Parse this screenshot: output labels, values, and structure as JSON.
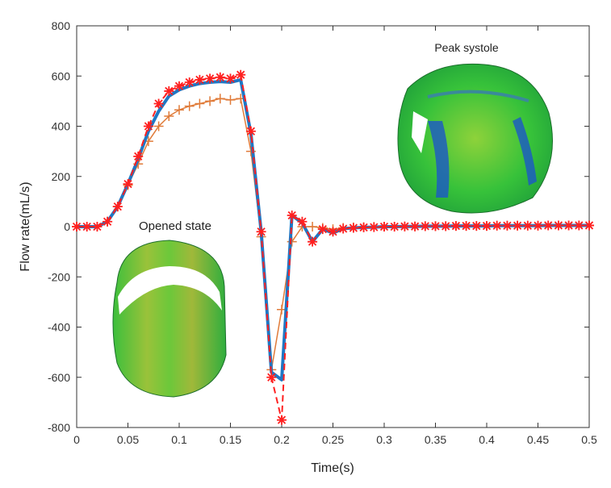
{
  "chart_data": {
    "type": "line",
    "title": "",
    "xlabel": "Time(s)",
    "ylabel": "Flow rate(mL/s)",
    "xlim": [
      0,
      0.5
    ],
    "ylim": [
      -800,
      800
    ],
    "xticks": [
      "0",
      "0.05",
      "0.1",
      "0.15",
      "0.2",
      "0.25",
      "0.3",
      "0.35",
      "0.4",
      "0.45",
      "0.5"
    ],
    "yticks": [
      "800",
      "600",
      "400",
      "200",
      "0",
      "-200",
      "-400",
      "-600",
      "-800"
    ],
    "grid": false,
    "x_step": 0.01,
    "series": [
      {
        "style": "solid-thick",
        "color": "#1f77c4",
        "values": [
          0,
          0,
          0,
          20,
          80,
          170,
          270,
          380,
          460,
          520,
          545,
          560,
          570,
          575,
          578,
          575,
          585,
          370,
          -20,
          -580,
          -610,
          45,
          15,
          -60,
          -10,
          -25,
          -8,
          -5,
          -3,
          -2,
          0,
          0,
          1,
          1,
          2,
          2,
          2,
          3,
          3,
          3,
          3,
          4,
          4,
          4,
          4,
          4,
          5,
          5,
          5,
          5,
          5
        ]
      },
      {
        "style": "dashed-star",
        "color": "#ff2020",
        "values": [
          0,
          0,
          0,
          20,
          80,
          170,
          280,
          400,
          490,
          540,
          560,
          575,
          585,
          590,
          595,
          590,
          605,
          380,
          -20,
          -600,
          -770,
          45,
          20,
          -60,
          -10,
          -20,
          -8,
          -5,
          -3,
          -2,
          0,
          0,
          1,
          1,
          2,
          2,
          2,
          3,
          3,
          3,
          3,
          4,
          4,
          4,
          4,
          4,
          5,
          5,
          5,
          5,
          5
        ]
      },
      {
        "style": "thin-plus",
        "color": "#e07b39",
        "values": [
          0,
          0,
          0,
          20,
          80,
          165,
          250,
          340,
          400,
          440,
          465,
          480,
          490,
          500,
          510,
          505,
          510,
          300,
          -40,
          -570,
          -330,
          -60,
          0,
          0,
          -5,
          -10,
          -5,
          -3,
          -2,
          -1,
          0,
          0,
          1,
          1,
          2,
          2,
          2,
          3,
          3,
          3,
          3,
          4,
          4,
          4,
          4,
          4,
          5,
          5,
          5,
          5,
          5
        ]
      }
    ],
    "annotations": [
      "Peak systole",
      "Opened state"
    ]
  }
}
